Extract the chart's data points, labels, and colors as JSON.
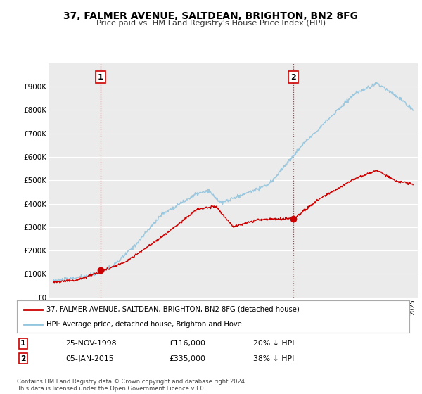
{
  "title": "37, FALMER AVENUE, SALTDEAN, BRIGHTON, BN2 8FG",
  "subtitle": "Price paid vs. HM Land Registry's House Price Index (HPI)",
  "background_color": "#ffffff",
  "plot_bg_color": "#ebebeb",
  "grid_color": "#ffffff",
  "sale1_price": 116000,
  "sale2_price": 335000,
  "annotation1": "25-NOV-1998",
  "annotation1_price": "£116,000",
  "annotation1_pct": "20% ↓ HPI",
  "annotation2": "05-JAN-2015",
  "annotation2_price": "£335,000",
  "annotation2_pct": "38% ↓ HPI",
  "legend_label1": "37, FALMER AVENUE, SALTDEAN, BRIGHTON, BN2 8FG (detached house)",
  "legend_label2": "HPI: Average price, detached house, Brighton and Hove",
  "footer": "Contains HM Land Registry data © Crown copyright and database right 2024.\nThis data is licensed under the Open Government Licence v3.0.",
  "hpi_color": "#92c5de",
  "price_color": "#cc0000",
  "marker_color": "#cc0000",
  "vline_color": "#cc0000",
  "ylim_max": 1000000,
  "ylim_min": 0,
  "sale1_x": 1998.917,
  "sale2_x": 2015.04
}
